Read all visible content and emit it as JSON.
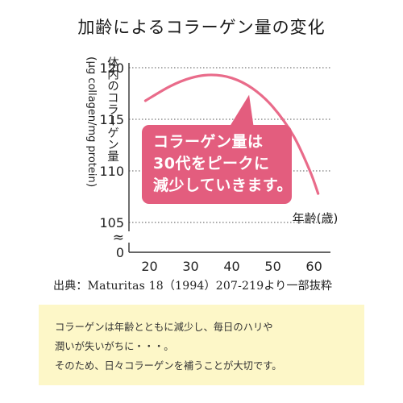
{
  "title": "加齢によるコラーゲン量の変化",
  "y_axis_label": {
    "open_paren": "(",
    "text": "体内のコラーゲン量",
    "unit": "μg collagen/mg protein",
    "close_paren": ")"
  },
  "callout": {
    "line1": "コラーゲン量は",
    "line2": "30代をピークに",
    "line3": "減少していきます。"
  },
  "source": "出典：Maturitas 18（1994）207-219より一部抜粋",
  "note": {
    "line1": "コラーゲンは年齢とともに減少し、毎日のハリや",
    "line2": "潤いが失いがちに・・・。",
    "line3": "そのため、日々コラーゲンを補うことが大切です。"
  },
  "colors": {
    "curve": "#e96b8a",
    "callout_bg": "#e35d7e",
    "note_bg": "#fdf7c8",
    "grid": "#555555"
  },
  "chart_data": {
    "type": "line",
    "title": "加齢によるコラーゲン量の変化",
    "xlabel": "年齢(歳)",
    "ylabel": "体内のコラーゲン量 (μg collagen/mg protein)",
    "x_ticks": [
      20,
      30,
      40,
      50,
      60
    ],
    "y_ticks": [
      105,
      110,
      115,
      120
    ],
    "y_break": "≈",
    "y_zero_label": "0",
    "xlim": [
      15,
      64
    ],
    "ylim": [
      105,
      120
    ],
    "grid": "dotted horizontal",
    "series": [
      {
        "x": [
          19,
          25,
          30,
          35,
          40,
          45,
          50,
          55,
          59,
          61
        ],
        "y": [
          116.8,
          118.2,
          119.0,
          119.3,
          119.0,
          118.0,
          116.2,
          113.4,
          110.0,
          107.8
        ]
      }
    ]
  }
}
